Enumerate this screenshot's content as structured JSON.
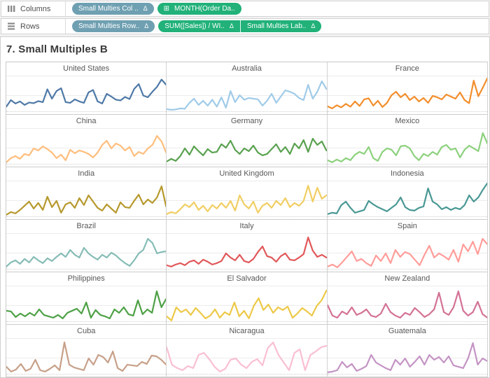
{
  "shelves": {
    "columns": {
      "label": "Columns",
      "pills": [
        {
          "text": "Small Multies Col ..",
          "suffix": "Δ",
          "kind": "blue"
        },
        {
          "text": "MONTH(Order Da..",
          "prefix": "⊞",
          "kind": "green"
        }
      ]
    },
    "rows": {
      "label": "Rows",
      "pills": [
        {
          "text": "Small Multies Row..",
          "suffix": "Δ",
          "kind": "blue"
        },
        {
          "text": "SUM([Sales]) / WI..",
          "suffix": "Δ",
          "kind": "green",
          "join": "start"
        },
        {
          "text": "Small Multies Lab..",
          "suffix": "Δ",
          "kind": "green",
          "join": "end"
        }
      ]
    }
  },
  "sheet": {
    "title": "7. Small Multiples B"
  },
  "colors": {
    "pill_blue": "#6FA0B2",
    "pill_green": "#21B179",
    "shelf_border": "#d4d4d4",
    "grid_border": "#cccccc",
    "label_text": "#575757",
    "title_text": "#3a3a3a"
  },
  "chart_data": {
    "type": "line",
    "layout": "small-multiples",
    "grid_columns": 3,
    "x_field": "MONTH(Order Date)",
    "y_field": "SUM([Sales]) / WINDOW normalized (unlabeled axis, values estimated 0-100)",
    "grid": true,
    "multiples": [
      {
        "title": "United States",
        "color": "#4E79A7",
        "values": [
          15,
          34,
          24,
          30,
          20,
          27,
          25,
          31,
          28,
          65,
          38,
          60,
          68,
          28,
          26,
          36,
          30,
          26,
          56,
          63,
          30,
          24,
          52,
          44,
          35,
          33,
          43,
          37,
          66,
          80,
          47,
          42,
          58,
          72,
          93,
          78
        ]
      },
      {
        "title": "Australia",
        "color": "#A0CBE8",
        "values": [
          8,
          6,
          7,
          10,
          9,
          26,
          38,
          20,
          32,
          18,
          35,
          15,
          42,
          12,
          60,
          28,
          48,
          35,
          40,
          38,
          36,
          18,
          32,
          52,
          26,
          44,
          62,
          58,
          52,
          40,
          34,
          78,
          38,
          58,
          88,
          66
        ]
      },
      {
        "title": "France",
        "color": "#F28E2B",
        "values": [
          16,
          10,
          19,
          13,
          23,
          15,
          30,
          17,
          36,
          39,
          18,
          32,
          14,
          26,
          48,
          58,
          42,
          52,
          34,
          44,
          30,
          40,
          26,
          46,
          42,
          36,
          50,
          44,
          38,
          56,
          34,
          25,
          90,
          45,
          70,
          97
        ]
      },
      {
        "title": "China",
        "color": "#FFBE7D",
        "values": [
          6,
          18,
          24,
          16,
          30,
          26,
          46,
          40,
          52,
          44,
          34,
          18,
          28,
          12,
          42,
          32,
          40,
          36,
          30,
          20,
          34,
          56,
          68,
          46,
          60,
          54,
          40,
          50,
          24,
          36,
          30,
          46,
          56,
          82,
          66,
          34
        ]
      },
      {
        "title": "Germany",
        "color": "#59A14F",
        "values": [
          8,
          16,
          10,
          24,
          46,
          28,
          52,
          38,
          26,
          44,
          34,
          36,
          58,
          48,
          68,
          42,
          30,
          46,
          38,
          54,
          34,
          26,
          30,
          44,
          58,
          36,
          50,
          30,
          60,
          46,
          70,
          36,
          74,
          56,
          66,
          40
        ]
      },
      {
        "title": "Mexico",
        "color": "#8CD17D",
        "values": [
          12,
          6,
          14,
          8,
          18,
          12,
          28,
          36,
          30,
          50,
          18,
          10,
          36,
          46,
          42,
          26,
          52,
          54,
          46,
          24,
          12,
          30,
          24,
          36,
          28,
          50,
          56,
          42,
          46,
          20,
          42,
          54,
          46,
          38,
          90,
          60
        ]
      },
      {
        "title": "India",
        "color": "#B6992D",
        "values": [
          6,
          14,
          10,
          20,
          32,
          44,
          24,
          40,
          20,
          58,
          28,
          46,
          12,
          36,
          42,
          26,
          54,
          34,
          62,
          44,
          26,
          18,
          36,
          24,
          12,
          42,
          28,
          26,
          46,
          64,
          36,
          50,
          40,
          56,
          88,
          30
        ]
      },
      {
        "title": "United Kingdom",
        "color": "#F1CE63",
        "values": [
          8,
          14,
          10,
          22,
          36,
          28,
          42,
          20,
          32,
          16,
          34,
          24,
          40,
          26,
          46,
          18,
          62,
          36,
          24,
          44,
          12,
          32,
          40,
          26,
          46,
          34,
          54,
          28,
          40,
          32,
          46,
          90,
          44,
          84,
          52,
          62
        ]
      },
      {
        "title": "Indonesia",
        "color": "#499894",
        "values": [
          8,
          12,
          10,
          34,
          44,
          26,
          12,
          16,
          20,
          46,
          36,
          28,
          22,
          16,
          26,
          36,
          56,
          28,
          20,
          18,
          26,
          30,
          82,
          44,
          36,
          22,
          28,
          20,
          26,
          22,
          34,
          62,
          44,
          56,
          78,
          97
        ]
      },
      {
        "title": "Brazil",
        "color": "#86BCB6",
        "values": [
          8,
          20,
          26,
          16,
          30,
          20,
          36,
          26,
          18,
          32,
          24,
          36,
          46,
          36,
          56,
          42,
          34,
          62,
          46,
          36,
          28,
          42,
          34,
          48,
          40,
          28,
          18,
          10,
          26,
          46,
          56,
          88,
          76,
          46,
          50,
          52
        ]
      },
      {
        "title": "Italy",
        "color": "#E15759",
        "values": [
          12,
          8,
          14,
          18,
          12,
          22,
          26,
          16,
          28,
          22,
          14,
          18,
          24,
          46,
          34,
          26,
          42,
          24,
          20,
          30,
          50,
          66,
          38,
          34,
          22,
          38,
          46,
          28,
          26,
          34,
          44,
          92,
          54,
          36,
          42,
          34
        ]
      },
      {
        "title": "Spain",
        "color": "#FF9D9A",
        "values": [
          8,
          14,
          6,
          20,
          36,
          52,
          24,
          30,
          18,
          10,
          40,
          24,
          46,
          18,
          56,
          36,
          50,
          44,
          28,
          12,
          42,
          68,
          34,
          46,
          38,
          28,
          56,
          22,
          72,
          52,
          80,
          44,
          88,
          72
        ]
      },
      {
        "title": "Philippines",
        "color": "#4EA146",
        "values": [
          32,
          30,
          14,
          24,
          16,
          26,
          18,
          36,
          20,
          16,
          12,
          20,
          10,
          26,
          32,
          38,
          24,
          56,
          12,
          34,
          20,
          16,
          10,
          36,
          26,
          42,
          22,
          18,
          62,
          22,
          36,
          26,
          88,
          42,
          66
        ]
      },
      {
        "title": "El Salvador",
        "color": "#EDC948",
        "values": [
          16,
          4,
          42,
          28,
          36,
          20,
          40,
          26,
          10,
          18,
          36,
          12,
          28,
          20,
          56,
          16,
          32,
          10,
          46,
          68,
          34,
          50,
          26,
          42,
          34,
          44,
          12,
          24,
          40,
          30,
          18,
          46,
          62,
          90
        ]
      },
      {
        "title": "New Zealand",
        "color": "#D37295",
        "values": [
          48,
          18,
          12,
          30,
          22,
          42,
          20,
          26,
          36,
          18,
          14,
          24,
          52,
          28,
          18,
          12,
          26,
          20,
          40,
          28,
          14,
          22,
          36,
          84,
          28,
          20,
          42,
          88,
          32,
          18,
          28,
          58,
          22,
          12
        ]
      },
      {
        "title": "Cuba",
        "color": "#C7A088",
        "values": [
          22,
          8,
          14,
          30,
          10,
          16,
          42,
          12,
          8,
          16,
          26,
          12,
          92,
          28,
          20,
          16,
          12,
          46,
          28,
          56,
          50,
          34,
          66,
          18,
          10,
          28,
          26,
          24,
          36,
          30,
          54,
          52,
          42,
          28
        ]
      },
      {
        "title": "Nicaragua",
        "color": "#FABFD2",
        "values": [
          78,
          28,
          18,
          12,
          24,
          18,
          56,
          62,
          44,
          22,
          8,
          16,
          42,
          46,
          28,
          18,
          36,
          44,
          26,
          76,
          92,
          56,
          34,
          12,
          62,
          72,
          12,
          56,
          66,
          78,
          82
        ]
      },
      {
        "title": "Guatemala",
        "color": "#C494C4",
        "values": [
          6,
          8,
          12,
          36,
          20,
          30,
          10,
          16,
          24,
          56,
          34,
          26,
          18,
          12,
          42,
          28,
          46,
          22,
          36,
          52,
          28,
          56,
          42,
          50,
          34,
          52,
          26,
          22,
          18,
          46,
          90,
          28,
          46,
          38
        ]
      }
    ]
  }
}
